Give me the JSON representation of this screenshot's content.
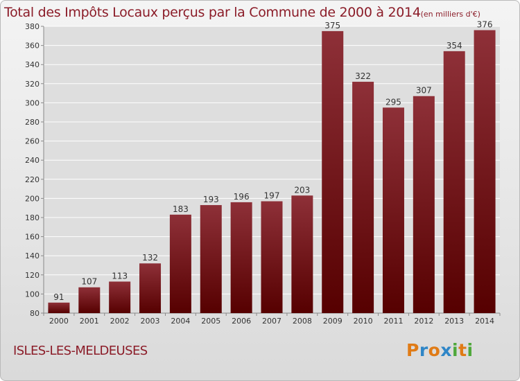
{
  "title": "Total des Impôts Locaux perçus par la Commune de 2000 à 2014",
  "title_unit": "(en milliers d'€)",
  "commune": "ISLES-LES-MELDEUSES",
  "logo": {
    "text": "Proxiti",
    "letter_colors": [
      "#e07b16",
      "#2f86c7",
      "#e07b16",
      "#2f86c7",
      "#4fa83b",
      "#e07b16",
      "#4fa83b"
    ]
  },
  "colors": {
    "bar_light": "#8e3038",
    "bar_dark": "#560000",
    "title": "#8b1c28",
    "grid": "#ffffff",
    "axis_text": "#333333"
  },
  "chart_data": {
    "type": "bar",
    "categories": [
      "2000",
      "2001",
      "2002",
      "2003",
      "2004",
      "2005",
      "2006",
      "2007",
      "2008",
      "2009",
      "2010",
      "2011",
      "2012",
      "2013",
      "2014"
    ],
    "values": [
      91,
      107,
      113,
      132,
      183,
      193,
      196,
      197,
      203,
      375,
      322,
      295,
      307,
      354,
      376
    ],
    "ylim": [
      80,
      380
    ],
    "yticks": [
      80,
      100,
      120,
      140,
      160,
      180,
      200,
      220,
      240,
      260,
      280,
      300,
      320,
      340,
      360,
      380
    ],
    "grid": true,
    "data_labels": true
  }
}
